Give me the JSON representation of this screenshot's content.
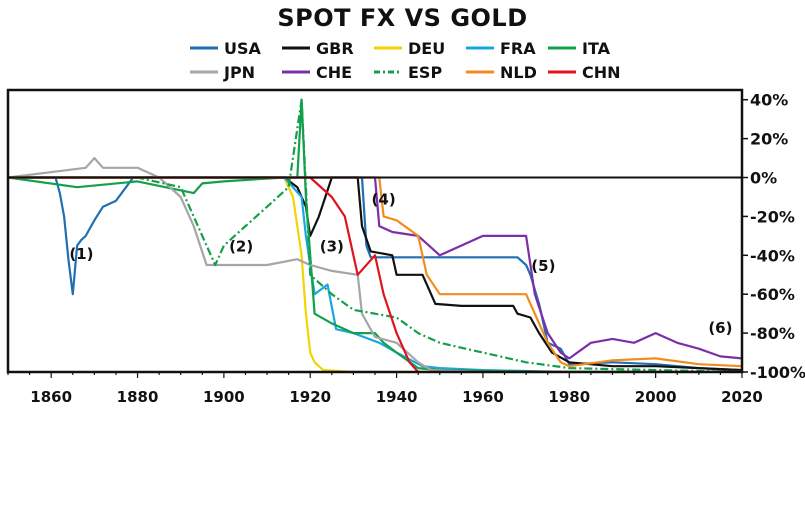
{
  "chart_data": {
    "type": "line",
    "title": "SPOT FX VS GOLD",
    "xlabel": "",
    "ylabel": "",
    "xlim": [
      1850,
      2020
    ],
    "ylim": [
      -100,
      45
    ],
    "x_ticks": [
      1860,
      1880,
      1900,
      1920,
      1940,
      1960,
      1980,
      2000,
      2020
    ],
    "y_ticks": [
      40,
      20,
      0,
      -20,
      -40,
      -60,
      -80,
      -100
    ],
    "y_tick_suffix": "%",
    "legend_position": "top",
    "grid": false,
    "series": [
      {
        "name": "USA",
        "color": "#1f6fb5",
        "dash": "",
        "points": [
          [
            1850,
            0
          ],
          [
            1861,
            0
          ],
          [
            1862,
            -8
          ],
          [
            1863,
            -20
          ],
          [
            1864,
            -42
          ],
          [
            1865,
            -60
          ],
          [
            1866,
            -35
          ],
          [
            1867,
            -32
          ],
          [
            1868,
            -30
          ],
          [
            1870,
            -22
          ],
          [
            1872,
            -15
          ],
          [
            1875,
            -12
          ],
          [
            1879,
            0
          ],
          [
            1900,
            0
          ],
          [
            1920,
            0
          ],
          [
            1932,
            0
          ],
          [
            1933,
            -35
          ],
          [
            1934,
            -41
          ],
          [
            1940,
            -41
          ],
          [
            1950,
            -41
          ],
          [
            1960,
            -41
          ],
          [
            1968,
            -41
          ],
          [
            1970,
            -45
          ],
          [
            1971,
            -50
          ],
          [
            1973,
            -65
          ],
          [
            1975,
            -85
          ],
          [
            1978,
            -88
          ],
          [
            1980,
            -96
          ],
          [
            1990,
            -95
          ],
          [
            2000,
            -96
          ],
          [
            2010,
            -98
          ],
          [
            2020,
            -99
          ]
        ]
      },
      {
        "name": "GBR",
        "color": "#111111",
        "dash": "",
        "points": [
          [
            1850,
            0
          ],
          [
            1914,
            0
          ],
          [
            1917,
            -5
          ],
          [
            1919,
            -15
          ],
          [
            1920,
            -30
          ],
          [
            1922,
            -20
          ],
          [
            1925,
            0
          ],
          [
            1931,
            0
          ],
          [
            1932,
            -25
          ],
          [
            1934,
            -38
          ],
          [
            1939,
            -40
          ],
          [
            1940,
            -50
          ],
          [
            1946,
            -50
          ],
          [
            1949,
            -65
          ],
          [
            1955,
            -66
          ],
          [
            1967,
            -66
          ],
          [
            1968,
            -70
          ],
          [
            1971,
            -72
          ],
          [
            1973,
            -80
          ],
          [
            1976,
            -90
          ],
          [
            1980,
            -95
          ],
          [
            1990,
            -97
          ],
          [
            2000,
            -97
          ],
          [
            2020,
            -99
          ]
        ]
      },
      {
        "name": "DEU",
        "color": "#f2d400",
        "dash": "",
        "points": [
          [
            1850,
            0
          ],
          [
            1914,
            0
          ],
          [
            1916,
            -10
          ],
          [
            1918,
            -40
          ],
          [
            1919,
            -70
          ],
          [
            1920,
            -90
          ],
          [
            1921,
            -95
          ],
          [
            1923,
            -99
          ],
          [
            1930,
            -100
          ],
          [
            2020,
            -100
          ]
        ]
      },
      {
        "name": "FRA",
        "color": "#1aa7e0",
        "dash": "",
        "points": [
          [
            1850,
            0
          ],
          [
            1914,
            0
          ],
          [
            1918,
            -10
          ],
          [
            1919,
            -30
          ],
          [
            1920,
            -45
          ],
          [
            1921,
            -60
          ],
          [
            1924,
            -55
          ],
          [
            1926,
            -78
          ],
          [
            1930,
            -80
          ],
          [
            1936,
            -85
          ],
          [
            1940,
            -90
          ],
          [
            1946,
            -97
          ],
          [
            1950,
            -98
          ],
          [
            1960,
            -99
          ],
          [
            1980,
            -100
          ],
          [
            2020,
            -100
          ]
        ]
      },
      {
        "name": "ITA",
        "color": "#14a04a",
        "dash": "",
        "points": [
          [
            1850,
            0
          ],
          [
            1866,
            -5
          ],
          [
            1880,
            -2
          ],
          [
            1893,
            -8
          ],
          [
            1895,
            -3
          ],
          [
            1900,
            -2
          ],
          [
            1914,
            0
          ],
          [
            1917,
            0
          ],
          [
            1918,
            40
          ],
          [
            1919,
            -10
          ],
          [
            1920,
            -40
          ],
          [
            1921,
            -70
          ],
          [
            1925,
            -75
          ],
          [
            1930,
            -80
          ],
          [
            1935,
            -80
          ],
          [
            1937,
            -85
          ],
          [
            1940,
            -90
          ],
          [
            1945,
            -98
          ],
          [
            1950,
            -99
          ],
          [
            1980,
            -100
          ],
          [
            2020,
            -100
          ]
        ]
      },
      {
        "name": "JPN",
        "color": "#a6a6a6",
        "dash": "",
        "points": [
          [
            1850,
            0
          ],
          [
            1868,
            5
          ],
          [
            1870,
            10
          ],
          [
            1872,
            5
          ],
          [
            1880,
            5
          ],
          [
            1885,
            0
          ],
          [
            1890,
            -10
          ],
          [
            1893,
            -25
          ],
          [
            1896,
            -45
          ],
          [
            1900,
            -45
          ],
          [
            1910,
            -45
          ],
          [
            1917,
            -42
          ],
          [
            1920,
            -45
          ],
          [
            1925,
            -48
          ],
          [
            1931,
            -50
          ],
          [
            1932,
            -70
          ],
          [
            1935,
            -82
          ],
          [
            1940,
            -85
          ],
          [
            1945,
            -95
          ],
          [
            1948,
            -99
          ],
          [
            1960,
            -100
          ],
          [
            2020,
            -100
          ]
        ]
      },
      {
        "name": "CHE",
        "color": "#7b2fa8",
        "dash": "",
        "points": [
          [
            1850,
            0
          ],
          [
            1935,
            0
          ],
          [
            1936,
            -25
          ],
          [
            1939,
            -28
          ],
          [
            1945,
            -30
          ],
          [
            1950,
            -40
          ],
          [
            1960,
            -30
          ],
          [
            1970,
            -30
          ],
          [
            1972,
            -60
          ],
          [
            1975,
            -80
          ],
          [
            1978,
            -90
          ],
          [
            1980,
            -93
          ],
          [
            1985,
            -85
          ],
          [
            1990,
            -83
          ],
          [
            1995,
            -85
          ],
          [
            2000,
            -80
          ],
          [
            2005,
            -85
          ],
          [
            2010,
            -88
          ],
          [
            2015,
            -92
          ],
          [
            2020,
            -93
          ]
        ]
      },
      {
        "name": "ESP",
        "color": "#14a04a",
        "dash": "8,3,2,3",
        "points": [
          [
            1850,
            0
          ],
          [
            1880,
            0
          ],
          [
            1890,
            -5
          ],
          [
            1895,
            -30
          ],
          [
            1898,
            -45
          ],
          [
            1900,
            -35
          ],
          [
            1905,
            -25
          ],
          [
            1910,
            -15
          ],
          [
            1915,
            -5
          ],
          [
            1918,
            40
          ],
          [
            1920,
            -50
          ],
          [
            1925,
            -60
          ],
          [
            1930,
            -68
          ],
          [
            1935,
            -70
          ],
          [
            1940,
            -72
          ],
          [
            1945,
            -80
          ],
          [
            1950,
            -85
          ],
          [
            1960,
            -90
          ],
          [
            1970,
            -95
          ],
          [
            1980,
            -98
          ],
          [
            2020,
            -100
          ]
        ]
      },
      {
        "name": "NLD",
        "color": "#f28c1e",
        "dash": "",
        "points": [
          [
            1850,
            0
          ],
          [
            1936,
            0
          ],
          [
            1937,
            -20
          ],
          [
            1940,
            -22
          ],
          [
            1945,
            -30
          ],
          [
            1947,
            -50
          ],
          [
            1950,
            -60
          ],
          [
            1960,
            -60
          ],
          [
            1970,
            -60
          ],
          [
            1972,
            -70
          ],
          [
            1975,
            -85
          ],
          [
            1978,
            -95
          ],
          [
            1980,
            -97
          ],
          [
            1990,
            -94
          ],
          [
            2000,
            -93
          ],
          [
            2010,
            -96
          ],
          [
            2020,
            -97
          ]
        ]
      },
      {
        "name": "CHN",
        "color": "#e0141e",
        "dash": "",
        "points": [
          [
            1850,
            0
          ],
          [
            1920,
            0
          ],
          [
            1925,
            -10
          ],
          [
            1928,
            -20
          ],
          [
            1931,
            -50
          ],
          [
            1935,
            -40
          ],
          [
            1937,
            -60
          ],
          [
            1940,
            -80
          ],
          [
            1943,
            -95
          ],
          [
            1945,
            -100
          ],
          [
            2020,
            -100
          ]
        ]
      }
    ],
    "annotations": [
      {
        "text": "(1)",
        "x": 1867,
        "y": -42
      },
      {
        "text": "(2)",
        "x": 1904,
        "y": -38
      },
      {
        "text": "(3)",
        "x": 1925,
        "y": -38
      },
      {
        "text": "(4)",
        "x": 1937,
        "y": -14
      },
      {
        "text": "(5)",
        "x": 1974,
        "y": -48
      },
      {
        "text": "(6)",
        "x": 2015,
        "y": -80
      }
    ]
  }
}
